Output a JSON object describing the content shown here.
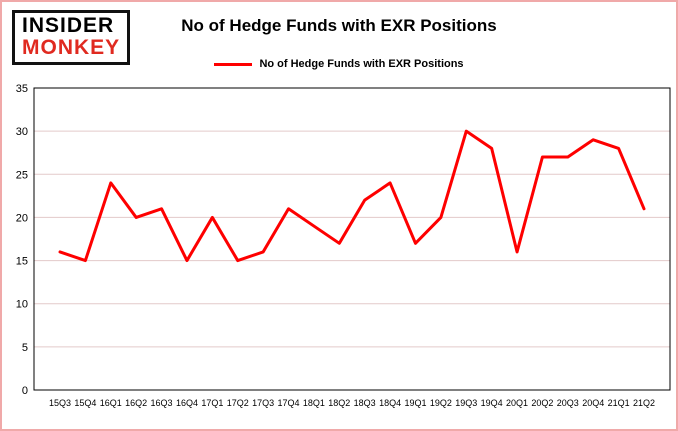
{
  "brand": {
    "line1": "INSIDER",
    "line2": "MONKEY",
    "monkey_color": "#e02a20"
  },
  "header": {
    "title": "No of Hedge Funds with EXR Positions"
  },
  "legend": {
    "label": "No of Hedge Funds with EXR Positions"
  },
  "chart_data": {
    "type": "line",
    "title": "No of Hedge Funds with EXR Positions",
    "categories": [
      "15Q3",
      "15Q4",
      "16Q1",
      "16Q2",
      "16Q3",
      "16Q4",
      "17Q1",
      "17Q2",
      "17Q3",
      "17Q4",
      "18Q1",
      "18Q2",
      "18Q3",
      "18Q4",
      "19Q1",
      "19Q2",
      "19Q3",
      "19Q4",
      "20Q1",
      "20Q2",
      "20Q3",
      "20Q4",
      "21Q1",
      "21Q2"
    ],
    "values": [
      16,
      15,
      24,
      20,
      21,
      15,
      20,
      15,
      16,
      21,
      19,
      17,
      22,
      24,
      17,
      20,
      30,
      28,
      16,
      27,
      27,
      29,
      28,
      21
    ],
    "xlabel": "",
    "ylabel": "",
    "ylim": [
      0,
      35
    ],
    "yticks": [
      0,
      5,
      10,
      15,
      20,
      25,
      30,
      35
    ],
    "grid": true,
    "legend_position": "top",
    "line_color": "#fe0000",
    "grid_color": "#e3caca",
    "axis_color": "#000000"
  }
}
